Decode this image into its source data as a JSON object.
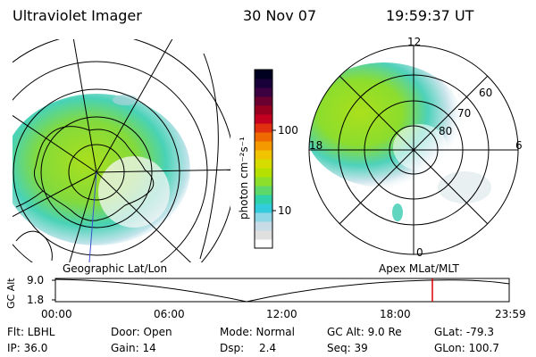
{
  "header": {
    "instrument": "Ultraviolet Imager",
    "date": "30 Nov 07",
    "time": "19:59:37 UT"
  },
  "colorbar": {
    "label": "photon cm⁻²s⁻¹",
    "ticks": [
      "100",
      "10"
    ],
    "colors": [
      "#ffffff",
      "#e0e0e0",
      "#c8dce8",
      "#8fd6e6",
      "#33ccdd",
      "#2fd1a8",
      "#5fd86a",
      "#8cdf2a",
      "#b6e000",
      "#d6dc00",
      "#f0c400",
      "#f49a00",
      "#ee6a00",
      "#e03010",
      "#c40020",
      "#98001f",
      "#6a0030",
      "#3a0040",
      "#1a0038",
      "#000020"
    ]
  },
  "geographic": {
    "label": "Geographic Lat/Lon"
  },
  "apex": {
    "label": "Apex MLat/MLT",
    "mlt_labels": {
      "top": "12",
      "right": "6",
      "bottom": "0",
      "left": "18"
    },
    "lat_labels": [
      "60",
      "70",
      "80"
    ]
  },
  "timeline": {
    "ylabel": "GC Alt",
    "y_ticks": [
      "9.0",
      "1.8"
    ],
    "x_ticks": [
      "00:00",
      "06:00",
      "12:00",
      "18:00",
      "23:59"
    ],
    "current_time_marker": "19:59"
  },
  "info": {
    "flt": "Flt: LBHL",
    "ip": "IP: 36.0",
    "door": "Door: Open",
    "gain": "Gain: 14",
    "mode": "Mode: Normal",
    "dsp": "Dsp:",
    "dsp_value": "2.4",
    "gcalt": "GC Alt: 9.0 Re",
    "seq": "Seq: 39",
    "glat": "GLat: -79.3",
    "glon": "GLon: 100.7"
  }
}
